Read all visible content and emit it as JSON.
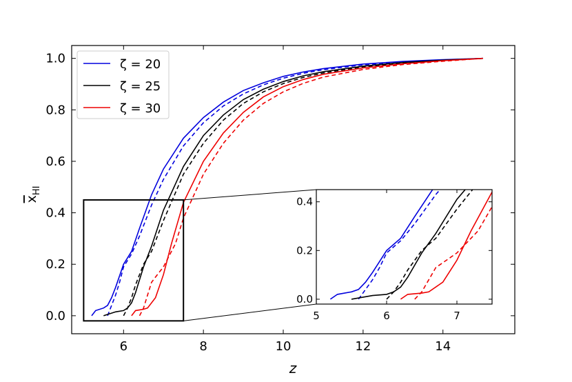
{
  "chart_data": [
    {
      "type": "line",
      "title": "",
      "xlabel": "z",
      "ylabel": "x̄_HI",
      "ylabel_main": "x",
      "ylabel_sub": "HI",
      "xlim": [
        4.7,
        15.8
      ],
      "ylim": [
        -0.07,
        1.05
      ],
      "xticks": [
        6,
        8,
        10,
        12,
        14
      ],
      "xtick_labels": [
        "6",
        "8",
        "10",
        "12",
        "14"
      ],
      "yticks": [
        0.0,
        0.2,
        0.4,
        0.6,
        0.8,
        1.0
      ],
      "ytick_labels": [
        "0.0",
        "0.2",
        "0.4",
        "0.6",
        "0.8",
        "1.0"
      ],
      "grid": false,
      "legend_position": "top-left",
      "legend": [
        {
          "label": "ζ = 20",
          "color": "#0000dd"
        },
        {
          "label": "ζ = 25",
          "color": "#000000"
        },
        {
          "label": "ζ = 30",
          "color": "#ee0000"
        }
      ],
      "zoom_box": {
        "x": [
          5.0,
          7.5
        ],
        "y": [
          -0.02,
          0.45
        ]
      },
      "series": [
        {
          "color": "#0000dd",
          "style": "solid",
          "x": [
            5.2,
            5.3,
            5.5,
            5.6,
            5.7,
            5.8,
            6.0,
            6.2,
            6.4,
            6.7,
            7.0,
            7.5,
            8.0,
            8.5,
            9.0,
            9.5,
            10.0,
            10.5,
            11.0,
            12.0,
            13.0,
            14.0,
            15.0
          ],
          "y": [
            0.0,
            0.02,
            0.03,
            0.04,
            0.07,
            0.11,
            0.2,
            0.25,
            0.34,
            0.47,
            0.57,
            0.69,
            0.77,
            0.83,
            0.875,
            0.905,
            0.93,
            0.947,
            0.96,
            0.978,
            0.988,
            0.995,
            1.0
          ]
        },
        {
          "color": "#0000dd",
          "style": "dashed",
          "x": [
            5.6,
            5.7,
            5.8,
            5.9,
            6.0,
            6.2,
            6.4,
            6.7,
            7.0,
            7.5,
            8.0,
            8.5,
            9.0,
            9.5,
            10.0,
            10.5,
            11.0,
            12.0,
            13.0,
            14.0,
            15.0
          ],
          "y": [
            0.0,
            0.04,
            0.08,
            0.13,
            0.19,
            0.24,
            0.31,
            0.43,
            0.53,
            0.66,
            0.75,
            0.815,
            0.862,
            0.897,
            0.923,
            0.942,
            0.956,
            0.975,
            0.986,
            0.994,
            1.0
          ]
        },
        {
          "color": "#000000",
          "style": "solid",
          "x": [
            5.5,
            5.8,
            6.0,
            6.1,
            6.2,
            6.3,
            6.5,
            6.7,
            7.0,
            7.5,
            8.0,
            8.5,
            9.0,
            9.5,
            10.0,
            10.5,
            11.0,
            12.0,
            13.0,
            14.0,
            15.0
          ],
          "y": [
            0.0,
            0.015,
            0.02,
            0.03,
            0.05,
            0.09,
            0.19,
            0.27,
            0.41,
            0.58,
            0.7,
            0.78,
            0.84,
            0.88,
            0.91,
            0.932,
            0.948,
            0.97,
            0.984,
            0.993,
            1.0
          ]
        },
        {
          "color": "#000000",
          "style": "dashed",
          "x": [
            6.0,
            6.1,
            6.2,
            6.3,
            6.5,
            6.7,
            7.0,
            7.5,
            8.0,
            8.5,
            9.0,
            9.5,
            10.0,
            10.5,
            11.0,
            12.0,
            13.0,
            14.0,
            15.0
          ],
          "y": [
            0.0,
            0.03,
            0.07,
            0.12,
            0.2,
            0.25,
            0.37,
            0.55,
            0.67,
            0.76,
            0.825,
            0.87,
            0.902,
            0.926,
            0.943,
            0.967,
            0.982,
            0.992,
            1.0
          ]
        },
        {
          "color": "#ee0000",
          "style": "solid",
          "x": [
            6.2,
            6.3,
            6.5,
            6.6,
            6.8,
            7.0,
            7.2,
            7.5,
            8.0,
            8.5,
            9.0,
            9.5,
            10.0,
            10.5,
            11.0,
            12.0,
            13.0,
            14.0,
            15.0
          ],
          "y": [
            0.0,
            0.02,
            0.025,
            0.03,
            0.07,
            0.16,
            0.28,
            0.44,
            0.6,
            0.71,
            0.79,
            0.85,
            0.89,
            0.918,
            0.938,
            0.963,
            0.979,
            0.991,
            1.0
          ]
        },
        {
          "color": "#ee0000",
          "style": "dashed",
          "x": [
            6.4,
            6.5,
            6.6,
            6.7,
            6.8,
            7.0,
            7.3,
            7.5,
            8.0,
            8.5,
            9.0,
            9.5,
            10.0,
            10.5,
            11.0,
            12.0,
            13.0,
            14.0,
            15.0
          ],
          "y": [
            0.0,
            0.03,
            0.08,
            0.13,
            0.15,
            0.19,
            0.28,
            0.38,
            0.55,
            0.67,
            0.76,
            0.825,
            0.87,
            0.903,
            0.927,
            0.957,
            0.976,
            0.989,
            1.0
          ]
        }
      ]
    },
    {
      "type": "line",
      "title": "",
      "xlabel": "",
      "ylabel": "",
      "xlim": [
        5.0,
        7.5
      ],
      "ylim": [
        -0.02,
        0.45
      ],
      "xticks": [
        5,
        6,
        7
      ],
      "xtick_labels": [
        "5",
        "6",
        "7"
      ],
      "yticks": [
        0.0,
        0.2,
        0.4
      ],
      "ytick_labels": [
        "0.0",
        "0.2",
        "0.4"
      ],
      "grid": false,
      "series_ref": "same as main chart"
    }
  ]
}
